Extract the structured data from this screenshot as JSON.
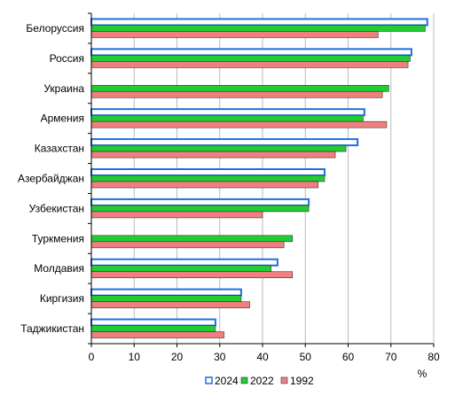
{
  "chart_data": {
    "type": "bar",
    "orientation": "horizontal",
    "categories": [
      "Белоруссия",
      "Россия",
      "Украина",
      "Армения",
      "Казахстан",
      "Азербайджан",
      "Узбекистан",
      "Туркмения",
      "Молдавия",
      "Киргизия",
      "Таджикистан"
    ],
    "series": [
      {
        "name": "2024",
        "values": [
          78.5,
          74.8,
          null,
          63.8,
          62.2,
          54.5,
          50.8,
          null,
          43.5,
          35.0,
          29.0
        ],
        "color": "#1f6fe0",
        "style": "outline"
      },
      {
        "name": "2022",
        "values": [
          78.0,
          74.5,
          69.5,
          63.5,
          59.5,
          54.5,
          50.8,
          47.0,
          42.0,
          35.0,
          29.0
        ],
        "color": "#22cc33",
        "style": "filled"
      },
      {
        "name": "1992",
        "values": [
          67.0,
          74.0,
          68.0,
          69.0,
          57.0,
          53.0,
          40.0,
          45.0,
          47.0,
          37.0,
          31.0
        ],
        "color": "#f08080",
        "style": "filled"
      }
    ],
    "xlim": [
      0,
      80
    ],
    "xticks": [
      "0",
      "10",
      "20",
      "30",
      "40",
      "50",
      "60",
      "70",
      "80"
    ],
    "unit_label": "%",
    "grid": "vertical",
    "legend_position": "bottom"
  }
}
